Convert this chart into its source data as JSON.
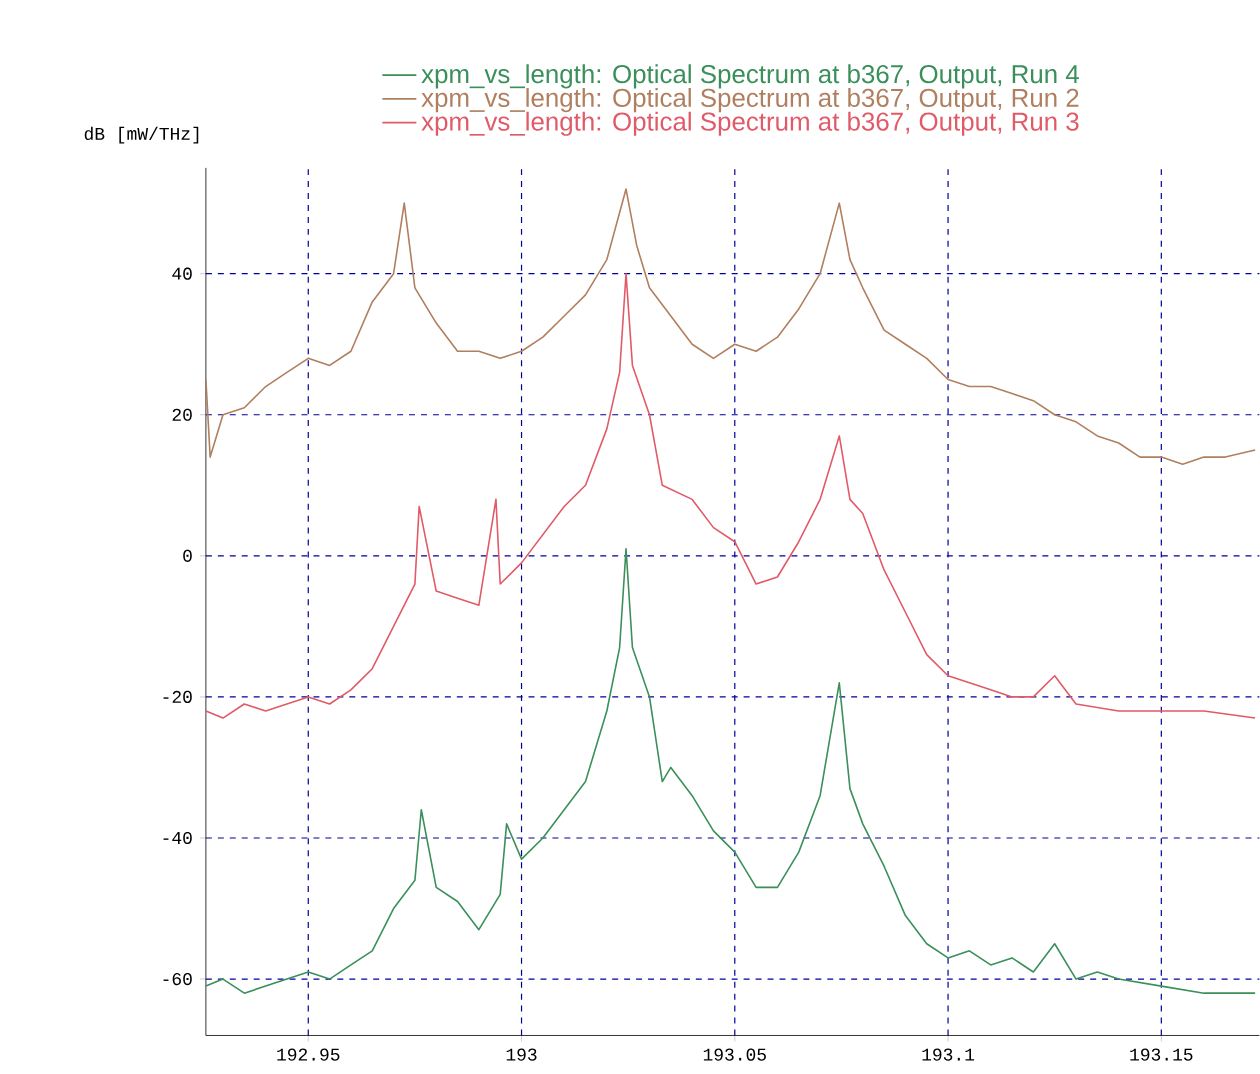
{
  "chart_data": {
    "type": "line",
    "ylabel": "dB [mW/THz]",
    "xlim": [
      192.926,
      193.173
    ],
    "ylim": [
      -68,
      55
    ],
    "xticks": [
      192.95,
      193,
      193.05,
      193.1,
      193.15
    ],
    "yticks": [
      -60,
      -40,
      -20,
      0,
      20,
      40
    ],
    "grid": true,
    "legend": "top",
    "marker": "none",
    "line_style": "solid",
    "series": [
      {
        "name": "xpm_vs_length: Optical Spectrum at b367, Output, Run 4",
        "color": "#3a8f5a",
        "x": [
          192.926,
          192.93,
          192.935,
          192.94,
          192.945,
          192.95,
          192.955,
          192.96,
          192.965,
          192.97,
          192.975,
          192.9765,
          192.98,
          192.985,
          192.99,
          192.995,
          192.9965,
          193.0,
          193.005,
          193.01,
          193.015,
          193.02,
          193.023,
          193.0245,
          193.026,
          193.03,
          193.033,
          193.035,
          193.04,
          193.045,
          193.05,
          193.055,
          193.06,
          193.065,
          193.07,
          193.0745,
          193.077,
          193.08,
          193.085,
          193.09,
          193.095,
          193.1,
          193.105,
          193.11,
          193.115,
          193.12,
          193.125,
          193.13,
          193.135,
          193.14,
          193.15,
          193.16,
          193.172
        ],
        "values": [
          -61,
          -60,
          -62,
          -61,
          -60,
          -59,
          -60,
          -58,
          -56,
          -50,
          -46,
          -36,
          -47,
          -49,
          -53,
          -48,
          -38,
          -43,
          -40,
          -36,
          -32,
          -22,
          -13,
          1,
          -13,
          -20,
          -32,
          -30,
          -34,
          -39,
          -42,
          -47,
          -47,
          -42,
          -34,
          -18,
          -33,
          -38,
          -44,
          -51,
          -55,
          -57,
          -56,
          -58,
          -57,
          -59,
          -55,
          -60,
          -59,
          -60,
          -61,
          -62,
          -62
        ]
      },
      {
        "name": "xpm_vs_length: Optical Spectrum at b367, Output, Run 2",
        "color": "#b07f5f",
        "x": [
          192.926,
          192.927,
          192.93,
          192.935,
          192.94,
          192.945,
          192.95,
          192.955,
          192.96,
          192.965,
          192.97,
          192.9725,
          192.975,
          192.98,
          192.985,
          192.99,
          192.995,
          193.0,
          193.005,
          193.01,
          193.015,
          193.02,
          193.0245,
          193.027,
          193.03,
          193.035,
          193.04,
          193.045,
          193.05,
          193.055,
          193.06,
          193.065,
          193.07,
          193.0745,
          193.077,
          193.08,
          193.085,
          193.09,
          193.095,
          193.1,
          193.105,
          193.11,
          193.115,
          193.12,
          193.125,
          193.13,
          193.135,
          193.14,
          193.145,
          193.15,
          193.155,
          193.16,
          193.165,
          193.172
        ],
        "values": [
          25,
          14,
          20,
          21,
          24,
          26,
          28,
          27,
          29,
          36,
          40,
          50,
          38,
          33,
          29,
          29,
          28,
          29,
          31,
          34,
          37,
          42,
          52,
          44,
          38,
          34,
          30,
          28,
          30,
          29,
          31,
          35,
          40,
          50,
          42,
          38,
          32,
          30,
          28,
          25,
          24,
          24,
          23,
          22,
          20,
          19,
          17,
          16,
          14,
          14,
          13,
          14,
          14,
          15
        ]
      },
      {
        "name": "xpm_vs_length: Optical Spectrum at b367, Output, Run 3",
        "color": "#e05a68",
        "x": [
          192.926,
          192.93,
          192.935,
          192.94,
          192.945,
          192.95,
          192.955,
          192.96,
          192.965,
          192.97,
          192.975,
          192.976,
          192.98,
          192.985,
          192.99,
          192.994,
          192.995,
          193.0,
          193.005,
          193.01,
          193.015,
          193.02,
          193.023,
          193.0245,
          193.026,
          193.03,
          193.033,
          193.04,
          193.045,
          193.05,
          193.055,
          193.06,
          193.065,
          193.07,
          193.0745,
          193.077,
          193.08,
          193.085,
          193.09,
          193.095,
          193.1,
          193.105,
          193.11,
          193.115,
          193.12,
          193.125,
          193.13,
          193.14,
          193.15,
          193.16,
          193.172
        ],
        "values": [
          -22,
          -23,
          -21,
          -22,
          -21,
          -20,
          -21,
          -19,
          -16,
          -10,
          -4,
          7,
          -5,
          -6,
          -7,
          8,
          -4,
          -1,
          3,
          7,
          10,
          18,
          26,
          40,
          27,
          20,
          10,
          8,
          4,
          2,
          -4,
          -3,
          2,
          8,
          17,
          8,
          6,
          -2,
          -8,
          -14,
          -17,
          -18,
          -19,
          -20,
          -20,
          -17,
          -21,
          -22,
          -22,
          -22,
          -23
        ]
      }
    ]
  }
}
